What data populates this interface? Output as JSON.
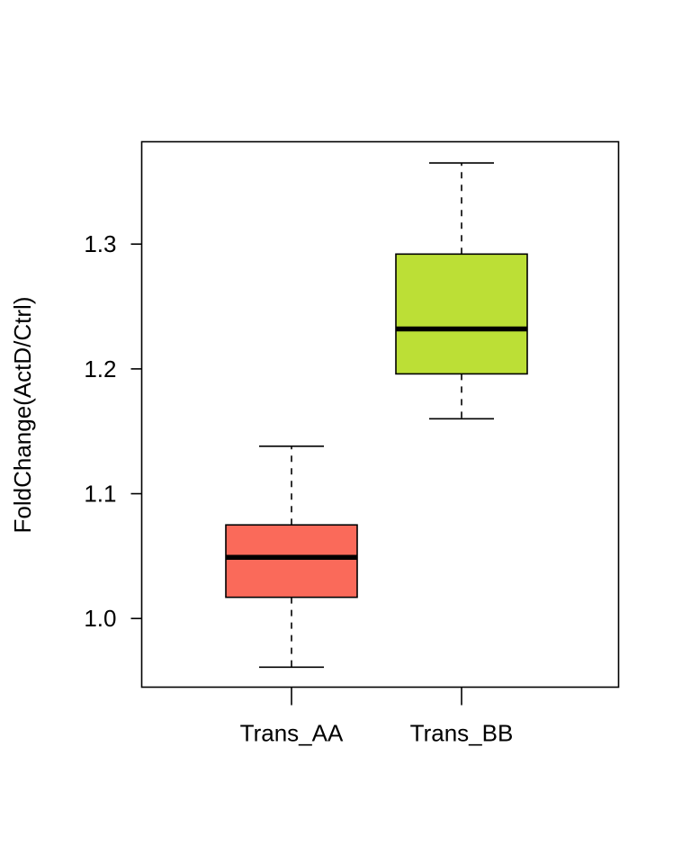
{
  "chart_data": {
    "type": "boxplot",
    "ylabel": "FoldChange(ActD/Ctrl)",
    "ylim": [
      0.945,
      1.382
    ],
    "yticks": [
      1.0,
      1.1,
      1.2,
      1.3
    ],
    "ytick_labels": [
      "1.0",
      "1.1",
      "1.2",
      "1.3"
    ],
    "grid": false,
    "categories": [
      "Trans_AA",
      "Trans_BB"
    ],
    "boxes": [
      {
        "category": "Trans_AA",
        "color": "#FA6A5A",
        "whisker_low": 0.961,
        "q1": 1.017,
        "median": 1.049,
        "q3": 1.075,
        "whisker_high": 1.138
      },
      {
        "category": "Trans_BB",
        "color": "#BCDF36",
        "whisker_low": 1.16,
        "q1": 1.196,
        "median": 1.232,
        "q3": 1.292,
        "whisker_high": 1.365
      }
    ]
  }
}
